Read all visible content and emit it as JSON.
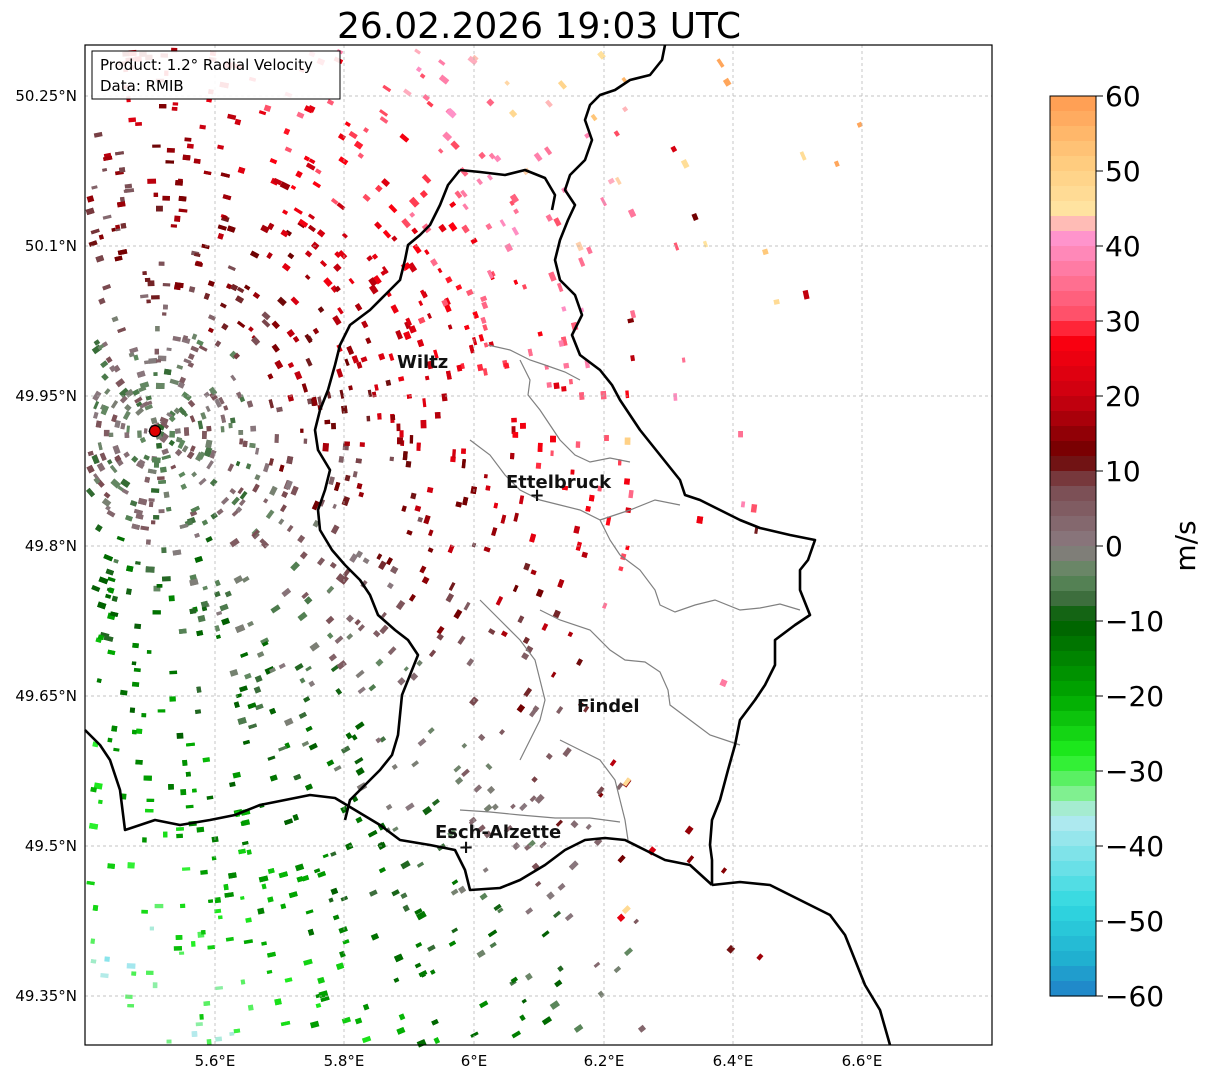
{
  "title": "26.02.2026 19:03 UTC",
  "info_box": {
    "line1": "Product: 1.2° Radial Velocity",
    "line2": "Data: RMIB"
  },
  "map": {
    "lon_ticks": [
      "5.6°E",
      "5.8°E",
      "6°E",
      "6.2°E",
      "6.4°E",
      "6.6°E"
    ],
    "lat_ticks": [
      "50.25°N",
      "50.1°N",
      "49.95°N",
      "49.8°N",
      "49.65°N",
      "49.5°N",
      "49.35°N"
    ],
    "cities": [
      {
        "name": "Wiltz",
        "lon": 5.93,
        "lat": 49.97
      },
      {
        "name": "Ettelbruck",
        "lon": 6.1,
        "lat": 49.85
      },
      {
        "name": "Findel",
        "lon": 6.21,
        "lat": 49.63
      },
      {
        "name": "Esch-Alzette",
        "lon": 5.98,
        "lat": 49.5
      }
    ],
    "radar_site": {
      "lon": 5.505,
      "lat": 49.915
    },
    "bounds": {
      "lon_min": 5.4,
      "lon_max": 6.8,
      "lat_min": 49.3,
      "lat_max": 50.3
    }
  },
  "colorbar": {
    "label": "m/s",
    "ticks": [
      "60",
      "50",
      "40",
      "30",
      "20",
      "10",
      "0",
      "−10",
      "−20",
      "−30",
      "−40",
      "−50",
      "−60"
    ],
    "vmin": -60,
    "vmax": 60,
    "stops": [
      {
        "v": 60,
        "color": "#ff9a50"
      },
      {
        "v": 52,
        "color": "#ffc87a"
      },
      {
        "v": 45,
        "color": "#ffe3a0"
      },
      {
        "v": 41,
        "color": "#ff94cc"
      },
      {
        "v": 35,
        "color": "#ff6f90"
      },
      {
        "v": 30,
        "color": "#ff4a60"
      },
      {
        "v": 28,
        "color": "#ff0010"
      },
      {
        "v": 20,
        "color": "#cc0010"
      },
      {
        "v": 12,
        "color": "#6e0000"
      },
      {
        "v": 8,
        "color": "#7a4a50"
      },
      {
        "v": 0,
        "color": "#8a7a80"
      },
      {
        "v": -4,
        "color": "#5f8a5f"
      },
      {
        "v": -7,
        "color": "#3d6e3d"
      },
      {
        "v": -10,
        "color": "#005f00"
      },
      {
        "v": -20,
        "color": "#00a800"
      },
      {
        "v": -28,
        "color": "#20f020"
      },
      {
        "v": -33,
        "color": "#80f090"
      },
      {
        "v": -36,
        "color": "#b8eaf0"
      },
      {
        "v": -48,
        "color": "#30d8e0"
      },
      {
        "v": -55,
        "color": "#20b0d0"
      },
      {
        "v": -60,
        "color": "#2080c8"
      }
    ]
  }
}
